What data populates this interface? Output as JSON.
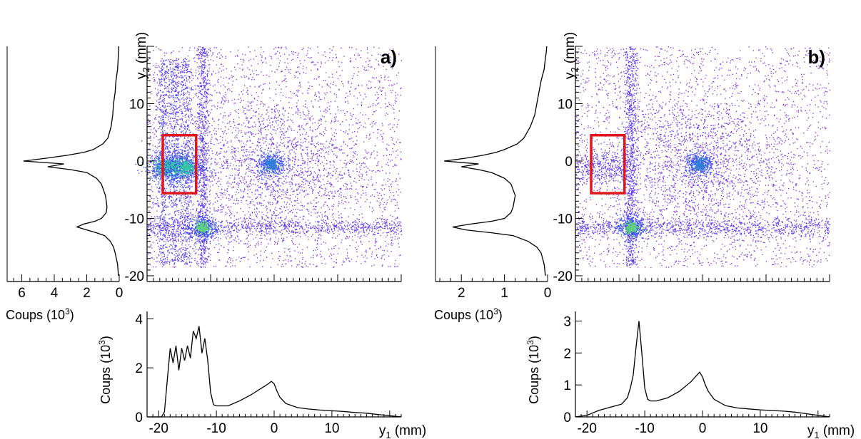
{
  "chart_data": [
    {
      "id": "a",
      "panel_label": "a)",
      "scatter": {
        "type": "scatter",
        "xlabel": "y1 (mm)",
        "ylabel": "y2 (mm)",
        "xlim": [
          -20,
          20
        ],
        "ylim": [
          -21,
          20
        ],
        "y_ticks": [
          -20,
          -10,
          0,
          10
        ],
        "y_tick_labels": [
          "-20",
          "-10",
          "0",
          "10"
        ],
        "density_clusters": [
          {
            "x": -17.5,
            "y": -1.0,
            "weight": 3,
            "color": "#31c9a0"
          },
          {
            "x": -15.8,
            "y": -1.0,
            "weight": 3,
            "color": "#31c9a0"
          },
          {
            "x": -13.8,
            "y": -1.0,
            "weight": 3,
            "color": "#31c9a0"
          },
          {
            "x": -11.3,
            "y": -11.5,
            "weight": 2,
            "color": "#5fd37a"
          },
          {
            "x": -0.5,
            "y": -0.5,
            "weight": 2,
            "color": "#2f7fd8"
          }
        ],
        "highlight_box": {
          "x": [
            -20,
            -12.5
          ],
          "y": [
            -5.6,
            4.5
          ],
          "color": "#e0161b"
        }
      },
      "y_projection": {
        "type": "line",
        "xlabel": "Coups (10",
        "xlabel_exp": "3",
        "xlabel_end": ")",
        "x_reversed": true,
        "xlim": [
          0,
          6.9
        ],
        "x_ticks": [
          6,
          4,
          2,
          0
        ],
        "x_tick_labels": [
          "6",
          "4",
          "2",
          "0"
        ],
        "ylim": [
          -21,
          20
        ],
        "y": [
          -20,
          -18,
          -16,
          -15,
          -14,
          -13,
          -12.5,
          -12,
          -11.5,
          -11,
          -10.5,
          -10,
          -9,
          -8,
          -6,
          -4,
          -3,
          -2,
          -1.5,
          -1,
          -0.5,
          0,
          0.5,
          1,
          1.5,
          2,
          3,
          4,
          6,
          8,
          10,
          12,
          14,
          16,
          18,
          19,
          20
        ],
        "counts": [
          0.05,
          0.1,
          0.25,
          0.35,
          0.55,
          0.9,
          1.4,
          2.0,
          2.6,
          2.2,
          1.5,
          1.1,
          0.8,
          0.75,
          0.85,
          1.1,
          1.4,
          2.0,
          3.0,
          4.4,
          3.4,
          5.9,
          4.5,
          3.2,
          2.2,
          1.6,
          1.0,
          0.7,
          0.5,
          0.4,
          0.35,
          0.25,
          0.2,
          0.1,
          0.06,
          0.05,
          0.03
        ]
      },
      "x_projection": {
        "type": "line",
        "xlabel": "y1 (mm)",
        "ylabel": "Coups (10",
        "ylabel_exp": "3",
        "ylabel_end": ")",
        "xlim": [
          -22,
          22
        ],
        "ylim": [
          0,
          4.3
        ],
        "x_ticks": [
          -20,
          -10,
          0,
          10
        ],
        "x_tick_labels": [
          "-20",
          "-10",
          "0",
          "10"
        ],
        "y_ticks": [
          0,
          2,
          4
        ],
        "y_tick_labels": [
          "0",
          "2",
          "4"
        ],
        "x": [
          -22,
          -19.5,
          -19,
          -18.5,
          -18,
          -17.5,
          -17,
          -16.5,
          -16,
          -15.5,
          -15,
          -14.5,
          -14,
          -13.5,
          -13,
          -12.5,
          -12,
          -11.5,
          -11,
          -10.5,
          -10,
          -8,
          -6,
          -4,
          -2,
          -1,
          -0.5,
          0,
          0.5,
          1,
          2,
          4,
          6,
          8,
          10,
          12,
          14,
          16,
          18,
          20,
          22
        ],
        "counts": [
          0,
          0,
          0.2,
          1.5,
          2.8,
          2.2,
          2.9,
          1.9,
          2.8,
          2.3,
          2.9,
          2.4,
          3.5,
          3.2,
          3.7,
          2.6,
          3.2,
          2.3,
          1.0,
          0.5,
          0.45,
          0.45,
          0.65,
          0.9,
          1.2,
          1.35,
          1.45,
          1.35,
          1.05,
          0.8,
          0.55,
          0.38,
          0.32,
          0.28,
          0.25,
          0.22,
          0.18,
          0.15,
          0.1,
          0.05,
          0
        ]
      }
    },
    {
      "id": "b",
      "panel_label": "b)",
      "scatter": {
        "type": "scatter",
        "xlabel": "y1 (mm)",
        "ylabel": "y2 (mm)",
        "xlim": [
          -20,
          20
        ],
        "ylim": [
          -21,
          20
        ],
        "y_ticks": [
          -20,
          -10,
          0,
          10
        ],
        "y_tick_labels": [
          "-20",
          "-10",
          "0",
          "10"
        ],
        "density_clusters": [
          {
            "x": -11.3,
            "y": -11.5,
            "weight": 2,
            "color": "#5fd37a"
          },
          {
            "x": -0.5,
            "y": -0.5,
            "weight": 2,
            "color": "#2f7fd8"
          }
        ],
        "highlight_box": {
          "x": [
            -20,
            -12.5
          ],
          "y": [
            -5.6,
            4.5
          ],
          "color": "#e0161b"
        }
      },
      "y_projection": {
        "type": "line",
        "xlabel": "Coups (10",
        "xlabel_exp": "3",
        "xlabel_end": ")",
        "x_reversed": true,
        "xlim": [
          0,
          2.6
        ],
        "x_ticks": [
          2,
          1,
          0
        ],
        "x_tick_labels": [
          "2",
          "1",
          "0"
        ],
        "ylim": [
          -21,
          20
        ],
        "y": [
          -20,
          -18,
          -16,
          -15,
          -14,
          -13,
          -12.5,
          -12,
          -11.5,
          -11,
          -10.5,
          -10,
          -9,
          -8,
          -6,
          -4,
          -3,
          -2,
          -1.5,
          -1,
          -0.5,
          0,
          0.5,
          1,
          1.5,
          2,
          3,
          4,
          6,
          8,
          10,
          12,
          14,
          16,
          18,
          19,
          20
        ],
        "counts": [
          0.05,
          0.08,
          0.15,
          0.25,
          0.45,
          0.8,
          1.3,
          1.9,
          2.2,
          1.8,
          1.3,
          1.0,
          0.85,
          0.8,
          0.75,
          0.85,
          1.0,
          1.3,
          1.6,
          2.0,
          1.6,
          2.4,
          1.9,
          1.5,
          1.2,
          1.0,
          0.7,
          0.55,
          0.4,
          0.3,
          0.25,
          0.2,
          0.15,
          0.08,
          0.05,
          0.03,
          0.02
        ]
      },
      "x_projection": {
        "type": "line",
        "xlabel": "y1 (mm)",
        "ylabel": "Coups (10",
        "ylabel_exp": "3",
        "ylabel_end": ")",
        "xlim": [
          -22,
          22
        ],
        "ylim": [
          0,
          3.3
        ],
        "x_ticks": [
          -20,
          -10,
          0,
          10
        ],
        "x_tick_labels": [
          "-20",
          "-10",
          "0",
          "10"
        ],
        "y_ticks": [
          0,
          1,
          2,
          3
        ],
        "y_tick_labels": [
          "0",
          "1",
          "2",
          "3"
        ],
        "x": [
          -22,
          -20,
          -18,
          -16,
          -15,
          -14,
          -13,
          -12.5,
          -12,
          -11.5,
          -11,
          -10.5,
          -10,
          -9.5,
          -9,
          -8,
          -6,
          -4,
          -2,
          -1,
          -0.5,
          0,
          0.5,
          1,
          2,
          4,
          6,
          8,
          10,
          12,
          14,
          16,
          18,
          20,
          22
        ],
        "counts": [
          0,
          0.05,
          0.2,
          0.3,
          0.35,
          0.4,
          0.6,
          0.9,
          1.3,
          2.2,
          3.0,
          2.0,
          0.9,
          0.55,
          0.5,
          0.5,
          0.6,
          0.8,
          1.1,
          1.3,
          1.4,
          1.25,
          1.0,
          0.8,
          0.55,
          0.35,
          0.28,
          0.25,
          0.22,
          0.2,
          0.18,
          0.15,
          0.1,
          0.05,
          0
        ]
      }
    }
  ]
}
